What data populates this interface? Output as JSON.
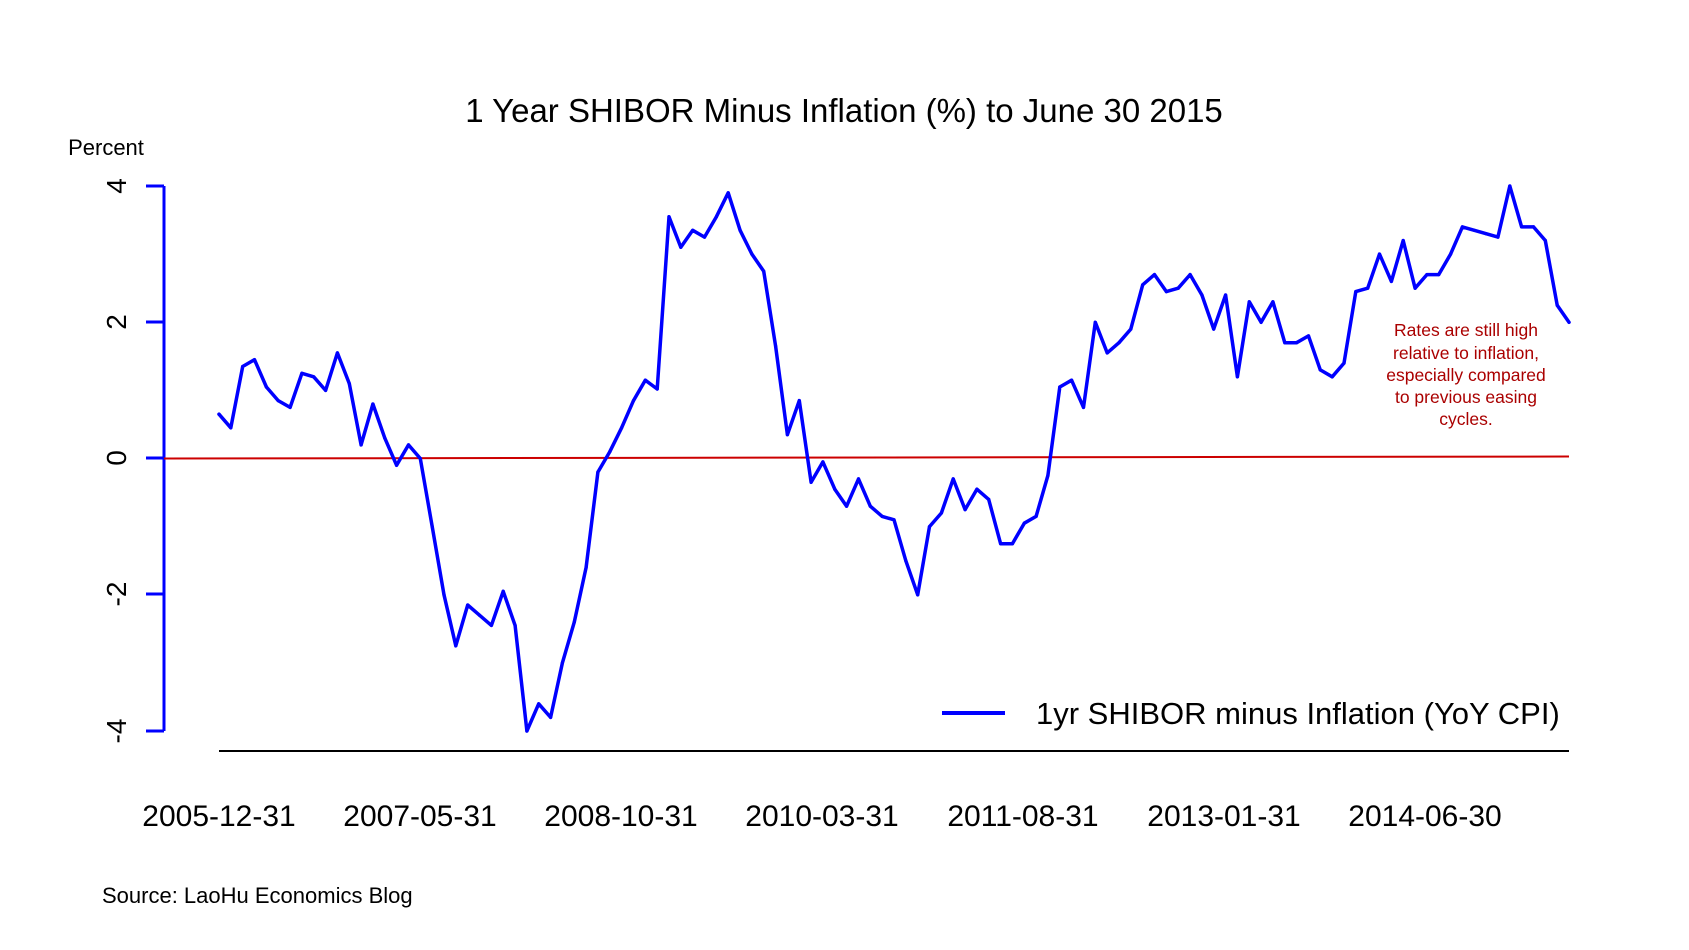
{
  "chart_data": {
    "type": "line",
    "title": "1 Year SHIBOR Minus Inflation (%) to June 30 2015",
    "ylabel": "Percent",
    "xlabel": "",
    "ylim": [
      -4,
      4
    ],
    "yticks": [
      "4",
      "2",
      "0",
      "-2",
      "-4"
    ],
    "x_tick_labels": [
      "2005-12-31",
      "2007-05-31",
      "2008-10-31",
      "2010-03-31",
      "2011-08-31",
      "2013-01-31",
      "2014-06-30"
    ],
    "grid": false,
    "legend_position": "bottom-right",
    "x_start": "2006-01-31",
    "x_end": "2015-06-30",
    "series": [
      {
        "name": "1yr SHIBOR minus Inflation (YoY CPI)",
        "color": "#0000ff",
        "values": [
          0.65,
          0.45,
          1.35,
          1.45,
          1.05,
          0.85,
          0.75,
          1.25,
          1.2,
          1.0,
          1.55,
          1.1,
          0.2,
          0.8,
          0.3,
          -0.1,
          0.2,
          0.0,
          -1.0,
          -2.0,
          -2.75,
          -2.15,
          -2.3,
          -2.45,
          -1.95,
          -2.45,
          -4.0,
          -3.6,
          -3.8,
          -3.0,
          -2.4,
          -1.6,
          -0.2,
          0.1,
          0.45,
          0.85,
          1.15,
          1.02,
          3.55,
          3.1,
          3.35,
          3.25,
          3.55,
          3.9,
          3.35,
          3.0,
          2.75,
          1.65,
          0.35,
          0.85,
          -0.35,
          -0.05,
          -0.45,
          -0.7,
          -0.3,
          -0.7,
          -0.85,
          -0.9,
          -1.5,
          -2.0,
          -1.0,
          -0.8,
          -0.3,
          -0.75,
          -0.45,
          -0.6,
          -1.25,
          -1.25,
          -0.95,
          -0.85,
          -0.25,
          1.05,
          1.15,
          0.75,
          2.0,
          1.55,
          1.7,
          1.9,
          2.55,
          2.7,
          2.45,
          2.5,
          2.7,
          2.4,
          1.9,
          2.4,
          1.2,
          2.3,
          2.0,
          2.3,
          1.7,
          1.7,
          1.8,
          1.3,
          1.2,
          1.4,
          2.45,
          2.5,
          3.0,
          2.6,
          3.2,
          2.5,
          2.7,
          2.7,
          3.0,
          3.4,
          3.35,
          3.3,
          3.25,
          4.0,
          3.4,
          3.4,
          3.2,
          2.25,
          2.0
        ]
      },
      {
        "name": "",
        "color": "#cc0000",
        "values": [
          0,
          0
        ]
      }
    ],
    "annotation": {
      "lines": [
        "Rates are still high",
        "relative to inflation,",
        "especially compared",
        "to previous easing",
        "cycles."
      ],
      "color": "#aa0000"
    }
  },
  "source": "Source: LaoHu Economics Blog"
}
